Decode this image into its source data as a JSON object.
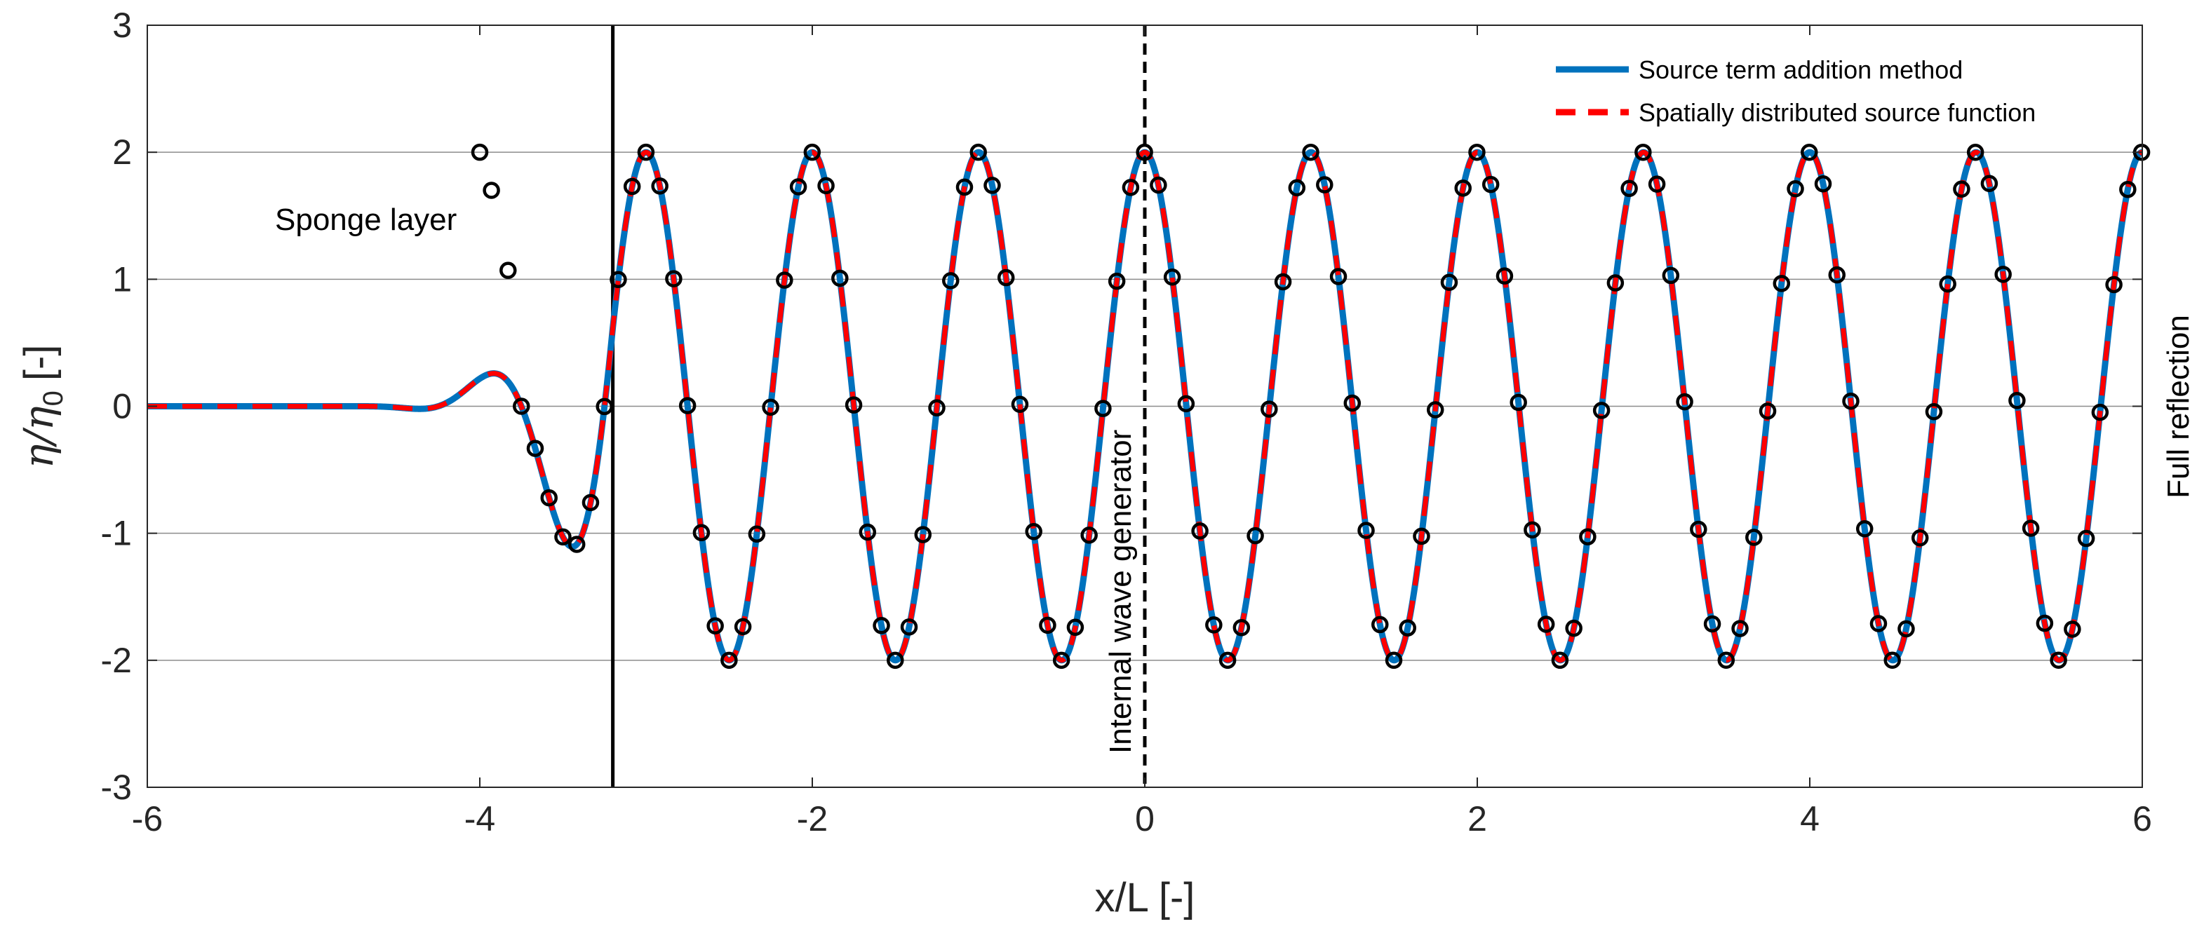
{
  "chart_data": {
    "type": "line",
    "title": "",
    "xlabel": "x/L [-]",
    "ylabel_main": "η/η",
    "ylabel_sub": "0",
    "ylabel_unit": "[-]",
    "xlim": [
      -6,
      6
    ],
    "ylim": [
      -3,
      3
    ],
    "x_ticks": [
      -6,
      -4,
      -2,
      0,
      2,
      4,
      6
    ],
    "y_ticks": [
      -3,
      -2,
      -1,
      0,
      1,
      2,
      3
    ],
    "x_tick_labels": [
      "-6",
      "-4",
      "-2",
      "0",
      "2",
      "4",
      "6"
    ],
    "y_tick_labels": [
      "-3",
      "-2",
      "-1",
      "0",
      "1",
      "2",
      "3"
    ],
    "grid": "horizontal",
    "legend_position": "top-right",
    "model": {
      "wave_form": "2*cos(2*pi*x)",
      "wavelength": 1,
      "amplitude": 2,
      "sponge_start": -4.8,
      "sponge_end": -3.2
    },
    "series": [
      {
        "name": "Source term addition method",
        "color": "#0072BD",
        "style": "solid"
      },
      {
        "name": "Spatially distributed source function",
        "color": "#FF0000",
        "style": "dashed"
      }
    ],
    "markers": {
      "color": "#000000",
      "x_start": -3.75,
      "x_end": 6,
      "step": 0.0833,
      "extra_points": [
        {
          "x": -4.0,
          "y": 2.0
        },
        {
          "x": -3.93,
          "y": 1.7
        },
        {
          "x": -3.83,
          "y": 1.07
        }
      ]
    },
    "vertical_lines": [
      {
        "x": -3.2,
        "style": "solid",
        "color": "#000000"
      },
      {
        "x": 0,
        "style": "dashed",
        "color": "#000000"
      }
    ],
    "annotations": {
      "sponge_layer": "Sponge layer",
      "internal_generator": "Internal wave generator",
      "full_reflection": "Full reflection"
    }
  }
}
